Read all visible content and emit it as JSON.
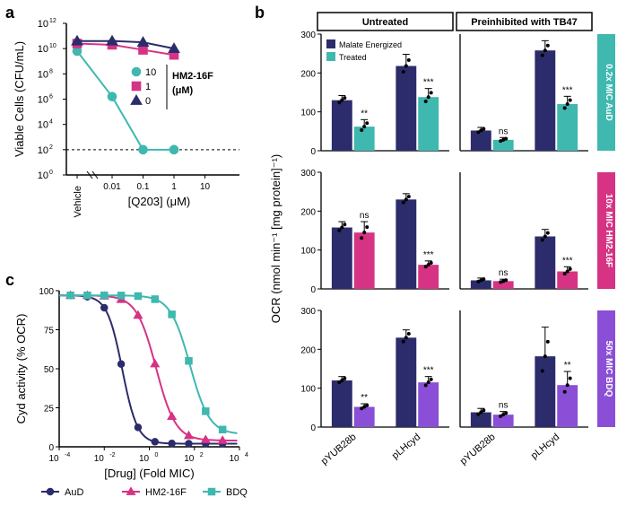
{
  "colors": {
    "teal": "#3fb8af",
    "magenta": "#d63384",
    "navy": "#2c2c6c",
    "purple": "#8a4fd6",
    "grid": "#cccccc",
    "text": "#000000",
    "bg": "#ffffff"
  },
  "panel_a": {
    "label": "a",
    "type": "line-scatter",
    "ylabel": "Viable Cells (CFU/mL)",
    "xlabel": "[Q203] (μM)",
    "y_log_min": 0,
    "y_log_max": 12,
    "y_tick_step": 2,
    "x_breaks": [
      "Vehicle",
      "0.01",
      "0.1",
      "1",
      "10"
    ],
    "legend_title": "HM2-16F\n(μM)",
    "series": [
      {
        "name": "10",
        "color": "#3fb8af",
        "marker": "circle",
        "points": [
          [
            0,
            9.8
          ],
          [
            1,
            6.2
          ],
          [
            2,
            2.0
          ],
          [
            3,
            2.0
          ]
        ]
      },
      {
        "name": "1",
        "color": "#d63384",
        "marker": "square",
        "points": [
          [
            0,
            10.4
          ],
          [
            1,
            10.3
          ],
          [
            2,
            9.9
          ],
          [
            3,
            9.5
          ]
        ]
      },
      {
        "name": "0",
        "color": "#2c2c6c",
        "marker": "triangle",
        "points": [
          [
            0,
            10.6
          ],
          [
            1,
            10.6
          ],
          [
            2,
            10.5
          ],
          [
            3,
            10.0
          ]
        ]
      }
    ],
    "detection_line": 2.0,
    "title_fontsize": 12,
    "axis_fontsize": 12,
    "tick_fontsize": 10,
    "marker_size": 6,
    "line_width": 2
  },
  "panel_b": {
    "label": "b",
    "type": "grouped-bar",
    "ylabel": "OCR (nmol min⁻¹ [mg protein]⁻¹)",
    "column_headers": [
      "Untreated",
      "Preinhibited with TB47"
    ],
    "x_categories": [
      "pYUB28b",
      "pLHcyd"
    ],
    "legend": [
      {
        "name": "Malate Energized",
        "color": "#2c2c6c"
      },
      {
        "name": "Treated",
        "color": null
      }
    ],
    "ylim": [
      0,
      300
    ],
    "ytick_step": 100,
    "rows": [
      {
        "label": "0.2x MIC AuD",
        "treated_color": "#3fb8af",
        "panels": [
          {
            "groups": [
              {
                "malate": 130,
                "treated": 62,
                "sig": "**",
                "err_m": 12,
                "err_t": 18
              },
              {
                "malate": 218,
                "treated": 138,
                "sig": "***",
                "err_m": 30,
                "err_t": 22
              }
            ]
          },
          {
            "groups": [
              {
                "malate": 52,
                "treated": 28,
                "sig": "ns",
                "err_m": 8,
                "err_t": 6
              },
              {
                "malate": 258,
                "treated": 120,
                "sig": "***",
                "err_m": 25,
                "err_t": 20
              }
            ]
          }
        ]
      },
      {
        "label": "10x MIC HM2-16F",
        "treated_color": "#d63384",
        "panels": [
          {
            "groups": [
              {
                "malate": 158,
                "treated": 145,
                "sig": "ns",
                "err_m": 15,
                "err_t": 28
              },
              {
                "malate": 230,
                "treated": 62,
                "sig": "***",
                "err_m": 15,
                "err_t": 10
              }
            ]
          },
          {
            "groups": [
              {
                "malate": 22,
                "treated": 20,
                "sig": "ns",
                "err_m": 6,
                "err_t": 5
              },
              {
                "malate": 135,
                "treated": 45,
                "sig": "***",
                "err_m": 18,
                "err_t": 12
              }
            ]
          }
        ]
      },
      {
        "label": "50x MIC BDQ",
        "treated_color": "#8a4fd6",
        "panels": [
          {
            "groups": [
              {
                "malate": 120,
                "treated": 52,
                "sig": "**",
                "err_m": 10,
                "err_t": 8
              },
              {
                "malate": 230,
                "treated": 115,
                "sig": "***",
                "err_m": 20,
                "err_t": 15
              }
            ]
          },
          {
            "groups": [
              {
                "malate": 38,
                "treated": 32,
                "sig": "ns",
                "err_m": 10,
                "err_t": 8
              },
              {
                "malate": 182,
                "treated": 108,
                "sig": "**",
                "err_m": 75,
                "err_t": 35
              }
            ]
          }
        ]
      }
    ],
    "bar_width": 0.4,
    "axis_fontsize": 12,
    "tick_fontsize": 10
  },
  "panel_c": {
    "label": "c",
    "type": "dose-response",
    "ylabel": "Cyd activity (% OCR)",
    "xlabel": "[Drug] (Fold MIC)",
    "x_log_min": -4,
    "x_log_max": 4,
    "x_tick_step": 2,
    "ylim": [
      0,
      100
    ],
    "ytick_step": 25,
    "series": [
      {
        "name": "AuD",
        "color": "#2c2c6c",
        "marker": "circle",
        "ic50": -1.2,
        "hill": 1.3,
        "top": 97,
        "bottom": 2
      },
      {
        "name": "HM2-16F",
        "color": "#d63384",
        "marker": "triangle",
        "ic50": 0.3,
        "hill": 1.0,
        "top": 97,
        "bottom": 4
      },
      {
        "name": "BDQ",
        "color": "#3fb8af",
        "marker": "square",
        "ic50": 1.8,
        "hill": 1.0,
        "top": 97,
        "bottom": 8
      }
    ],
    "axis_fontsize": 12,
    "tick_fontsize": 10,
    "marker_size": 5,
    "line_width": 2
  }
}
